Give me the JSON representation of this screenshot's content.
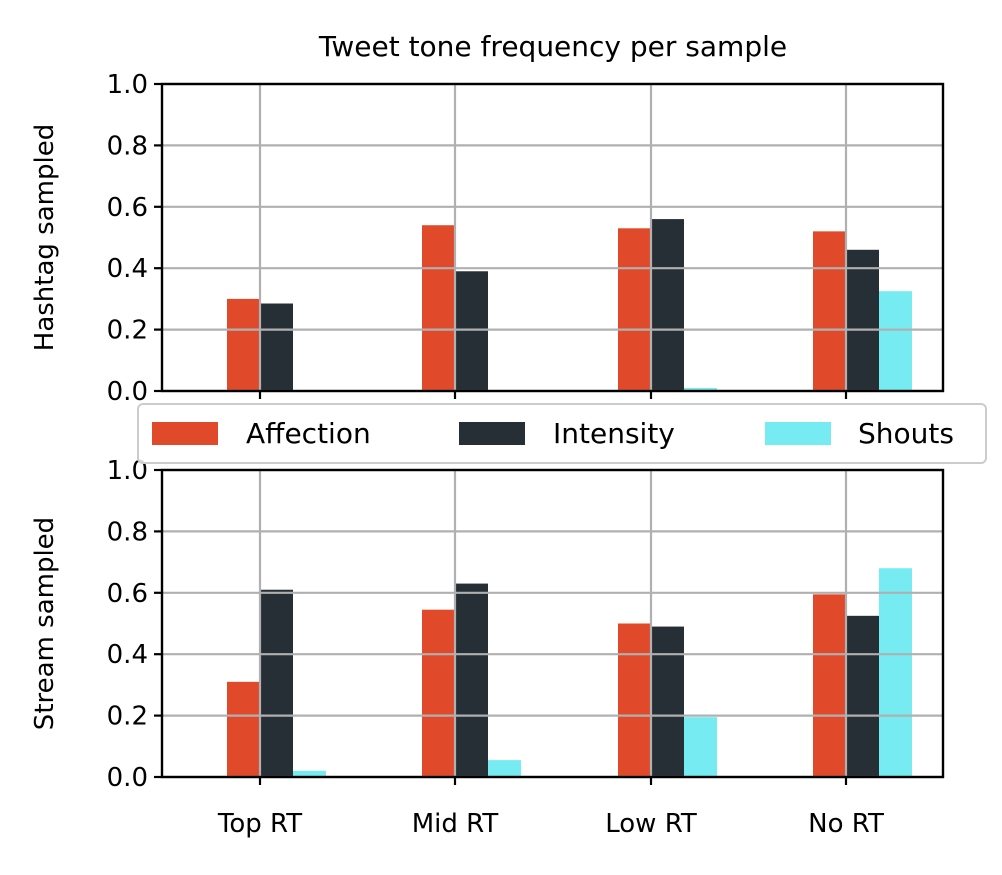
{
  "chart_data": {
    "type": "bar",
    "title": "Tweet tone frequency per sample",
    "categories": [
      "Top RT",
      "Mid RT",
      "Low RT",
      "No RT"
    ],
    "ylim": [
      0,
      1.0
    ],
    "yticks": [
      "0.0",
      "0.2",
      "0.4",
      "0.6",
      "0.8",
      "1.0"
    ],
    "grid": true,
    "legend_position": "center, between panels",
    "series_names": [
      "Affection",
      "Intensity",
      "Shouts"
    ],
    "colors": [
      "#e04a2a",
      "#272f36",
      "#76ebf2"
    ],
    "panels": [
      {
        "ylabel": "Hashtag sampled",
        "series": [
          {
            "name": "Affection",
            "values": [
              0.3,
              0.54,
              0.53,
              0.52
            ]
          },
          {
            "name": "Intensity",
            "values": [
              0.285,
              0.39,
              0.56,
              0.46
            ]
          },
          {
            "name": "Shouts",
            "values": [
              0.0,
              0.0,
              0.01,
              0.325
            ]
          }
        ]
      },
      {
        "ylabel": "Stream sampled",
        "series": [
          {
            "name": "Affection",
            "values": [
              0.31,
              0.545,
              0.5,
              0.595
            ]
          },
          {
            "name": "Intensity",
            "values": [
              0.61,
              0.63,
              0.49,
              0.525
            ]
          },
          {
            "name": "Shouts",
            "values": [
              0.02,
              0.055,
              0.195,
              0.68
            ]
          }
        ]
      }
    ]
  }
}
